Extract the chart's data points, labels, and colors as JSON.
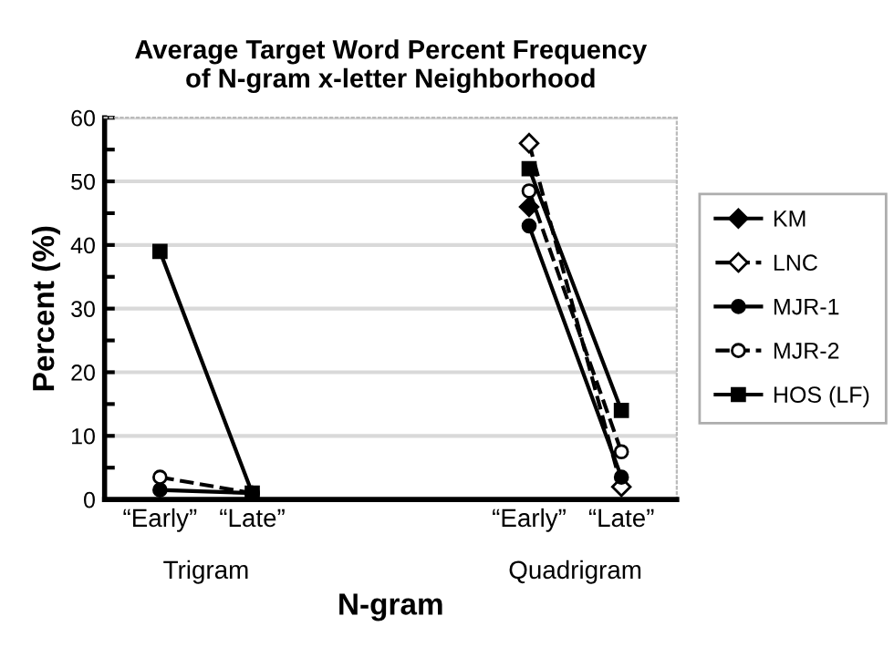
{
  "chart_data": {
    "type": "line",
    "title": "Average Target Word Percent Frequency\nof N-gram x-letter Neighborhood",
    "xlabel": "N-gram",
    "ylabel": "Percent (%)",
    "categories": [
      "“Early”",
      "“Late”",
      null,
      null,
      "“Early”",
      "“Late”"
    ],
    "annotations": [
      "Trigram",
      "Quadrigram"
    ],
    "series": [
      {
        "name": "KM",
        "color": "#000000",
        "marker": "diamond",
        "line_style": "solid",
        "values": [
          null,
          null,
          null,
          null,
          46,
          null
        ]
      },
      {
        "name": "LNC",
        "color": "#000000",
        "marker": "diamond",
        "line_style": "dashed",
        "values": [
          null,
          null,
          null,
          null,
          56,
          2
        ]
      },
      {
        "name": "MJR-1",
        "color": "#000000",
        "marker": "circle",
        "line_style": "solid",
        "values": [
          1.5,
          1,
          null,
          null,
          43,
          3.5
        ]
      },
      {
        "name": "MJR-2",
        "color": "#000000",
        "marker": "circle",
        "line_style": "dashed",
        "values": [
          3.5,
          1,
          null,
          null,
          48.5,
          7.5
        ]
      },
      {
        "name": "HOS (LF)",
        "color": "#000000",
        "marker": "square",
        "line_style": "solid",
        "values": [
          39,
          1,
          null,
          null,
          52,
          14
        ]
      }
    ],
    "ylim": [
      0,
      60
    ],
    "yticks": [
      0,
      10,
      20,
      30,
      40,
      50,
      60
    ],
    "grid": "y",
    "legend": "right"
  }
}
